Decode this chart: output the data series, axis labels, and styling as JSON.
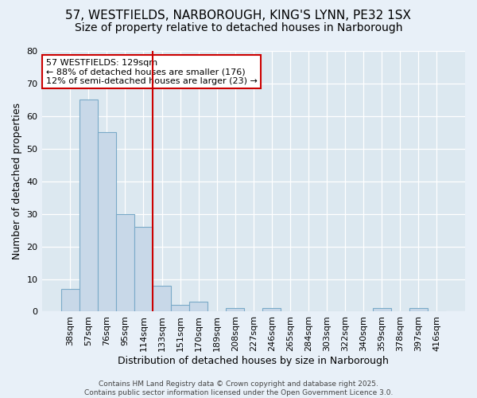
{
  "title_line1": "57, WESTFIELDS, NARBOROUGH, KING'S LYNN, PE32 1SX",
  "title_line2": "Size of property relative to detached houses in Narborough",
  "xlabel": "Distribution of detached houses by size in Narborough",
  "ylabel": "Number of detached properties",
  "bin_labels": [
    "38sqm",
    "57sqm",
    "76sqm",
    "95sqm",
    "114sqm",
    "133sqm",
    "151sqm",
    "170sqm",
    "189sqm",
    "208sqm",
    "227sqm",
    "246sqm",
    "265sqm",
    "284sqm",
    "303sqm",
    "322sqm",
    "340sqm",
    "359sqm",
    "378sqm",
    "397sqm",
    "416sqm"
  ],
  "bar_values": [
    7,
    65,
    55,
    30,
    26,
    8,
    2,
    3,
    0,
    1,
    0,
    1,
    0,
    0,
    0,
    0,
    0,
    1,
    0,
    1,
    0
  ],
  "bar_color": "#c8d8e8",
  "bar_edge_color": "#7aaac8",
  "vline_index": 5,
  "vline_color": "#cc0000",
  "annotation_text": "57 WESTFIELDS: 129sqm\n← 88% of detached houses are smaller (176)\n12% of semi-detached houses are larger (23) →",
  "annotation_box_facecolor": "#ffffff",
  "annotation_box_edgecolor": "#cc0000",
  "ylim": [
    0,
    80
  ],
  "yticks": [
    0,
    10,
    20,
    30,
    40,
    50,
    60,
    70,
    80
  ],
  "plot_bg_color": "#dce8f0",
  "fig_bg_color": "#e8f0f8",
  "footer_line1": "Contains HM Land Registry data © Crown copyright and database right 2025.",
  "footer_line2": "Contains public sector information licensed under the Open Government Licence 3.0.",
  "title_fontsize": 11,
  "subtitle_fontsize": 10,
  "axis_label_fontsize": 9,
  "tick_fontsize": 8,
  "annotation_fontsize": 8
}
